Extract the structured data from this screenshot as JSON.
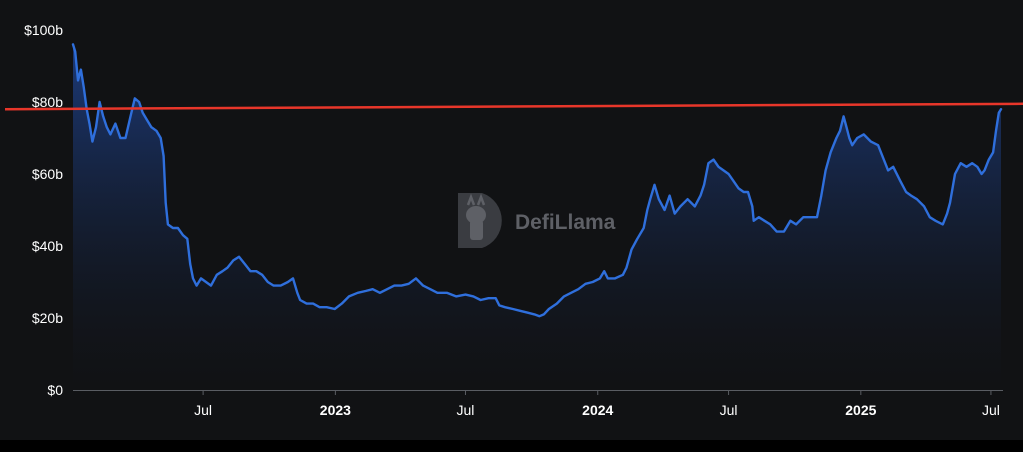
{
  "chart_data": {
    "type": "area",
    "title": "",
    "xlabel": "",
    "ylabel": "",
    "ylim": [
      0,
      100
    ],
    "y_unit": "$b",
    "y_ticks": [
      "$0",
      "$20b",
      "$40b",
      "$60b",
      "$80b",
      "$100b"
    ],
    "y_tick_values": [
      0,
      20,
      40,
      60,
      80,
      100
    ],
    "x_ticks": [
      {
        "label": "Jul",
        "date": "2022-07-01",
        "bold": false
      },
      {
        "label": "2023",
        "date": "2023-01-01",
        "bold": true
      },
      {
        "label": "Jul",
        "date": "2023-07-01",
        "bold": false
      },
      {
        "label": "2024",
        "date": "2024-01-01",
        "bold": true
      },
      {
        "label": "Jul",
        "date": "2024-07-01",
        "bold": false
      },
      {
        "label": "2025",
        "date": "2025-01-01",
        "bold": true
      },
      {
        "label": "Jul",
        "date": "2025-07-01",
        "bold": false
      }
    ],
    "xlim": [
      "2022-01-01",
      "2025-07-15"
    ],
    "grid": false,
    "legend": "none",
    "series": [
      {
        "color": "#2f6fdc",
        "points": [
          [
            "2022-01-01",
            96
          ],
          [
            "2022-01-04",
            94
          ],
          [
            "2022-01-08",
            86
          ],
          [
            "2022-01-12",
            89
          ],
          [
            "2022-01-16",
            84
          ],
          [
            "2022-01-20",
            78
          ],
          [
            "2022-01-24",
            74
          ],
          [
            "2022-01-28",
            69
          ],
          [
            "2022-02-02",
            73
          ],
          [
            "2022-02-07",
            80
          ],
          [
            "2022-02-12",
            76
          ],
          [
            "2022-02-17",
            73
          ],
          [
            "2022-02-22",
            71
          ],
          [
            "2022-03-01",
            74
          ],
          [
            "2022-03-08",
            70
          ],
          [
            "2022-03-15",
            70
          ],
          [
            "2022-03-22",
            76
          ],
          [
            "2022-03-28",
            81
          ],
          [
            "2022-04-03",
            80
          ],
          [
            "2022-04-08",
            77
          ],
          [
            "2022-04-14",
            75
          ],
          [
            "2022-04-20",
            73
          ],
          [
            "2022-04-27",
            72
          ],
          [
            "2022-05-03",
            70
          ],
          [
            "2022-05-07",
            65
          ],
          [
            "2022-05-10",
            52
          ],
          [
            "2022-05-13",
            46
          ],
          [
            "2022-05-20",
            45
          ],
          [
            "2022-05-27",
            45
          ],
          [
            "2022-06-03",
            43
          ],
          [
            "2022-06-09",
            42
          ],
          [
            "2022-06-13",
            35
          ],
          [
            "2022-06-17",
            31
          ],
          [
            "2022-06-22",
            29
          ],
          [
            "2022-06-28",
            31
          ],
          [
            "2022-07-05",
            30
          ],
          [
            "2022-07-12",
            29
          ],
          [
            "2022-07-20",
            32
          ],
          [
            "2022-07-28",
            33
          ],
          [
            "2022-08-04",
            34
          ],
          [
            "2022-08-12",
            36
          ],
          [
            "2022-08-20",
            37
          ],
          [
            "2022-08-28",
            35
          ],
          [
            "2022-09-05",
            33
          ],
          [
            "2022-09-13",
            33
          ],
          [
            "2022-09-21",
            32
          ],
          [
            "2022-09-29",
            30
          ],
          [
            "2022-10-07",
            29
          ],
          [
            "2022-10-17",
            29
          ],
          [
            "2022-10-27",
            30
          ],
          [
            "2022-11-03",
            31
          ],
          [
            "2022-11-09",
            27
          ],
          [
            "2022-11-13",
            25
          ],
          [
            "2022-11-22",
            24
          ],
          [
            "2022-12-01",
            24
          ],
          [
            "2022-12-10",
            23
          ],
          [
            "2022-12-20",
            23
          ],
          [
            "2022-12-31",
            22.5
          ],
          [
            "2023-01-10",
            24
          ],
          [
            "2023-01-20",
            26
          ],
          [
            "2023-02-01",
            27
          ],
          [
            "2023-02-12",
            27.5
          ],
          [
            "2023-02-22",
            28
          ],
          [
            "2023-03-04",
            27
          ],
          [
            "2023-03-14",
            28
          ],
          [
            "2023-03-24",
            29
          ],
          [
            "2023-04-03",
            29
          ],
          [
            "2023-04-13",
            29.5
          ],
          [
            "2023-04-23",
            31
          ],
          [
            "2023-05-03",
            29
          ],
          [
            "2023-05-13",
            28
          ],
          [
            "2023-05-23",
            27
          ],
          [
            "2023-06-05",
            27
          ],
          [
            "2023-06-18",
            26
          ],
          [
            "2023-07-01",
            26.5
          ],
          [
            "2023-07-12",
            26
          ],
          [
            "2023-07-22",
            25
          ],
          [
            "2023-08-02",
            25.5
          ],
          [
            "2023-08-12",
            25.5
          ],
          [
            "2023-08-17",
            23.5
          ],
          [
            "2023-08-25",
            23
          ],
          [
            "2023-09-05",
            22.5
          ],
          [
            "2023-09-15",
            22
          ],
          [
            "2023-09-25",
            21.5
          ],
          [
            "2023-10-05",
            21
          ],
          [
            "2023-10-12",
            20.5
          ],
          [
            "2023-10-18",
            21
          ],
          [
            "2023-10-25",
            22.5
          ],
          [
            "2023-11-05",
            24
          ],
          [
            "2023-11-15",
            26
          ],
          [
            "2023-11-25",
            27
          ],
          [
            "2023-12-05",
            28
          ],
          [
            "2023-12-15",
            29.5
          ],
          [
            "2023-12-25",
            30
          ],
          [
            "2024-01-04",
            31
          ],
          [
            "2024-01-10",
            33
          ],
          [
            "2024-01-15",
            31
          ],
          [
            "2024-01-25",
            31
          ],
          [
            "2024-02-05",
            32
          ],
          [
            "2024-02-10",
            34
          ],
          [
            "2024-02-17",
            39
          ],
          [
            "2024-02-25",
            42
          ],
          [
            "2024-03-05",
            45
          ],
          [
            "2024-03-10",
            50
          ],
          [
            "2024-03-14",
            53
          ],
          [
            "2024-03-20",
            57
          ],
          [
            "2024-03-26",
            53
          ],
          [
            "2024-04-03",
            50
          ],
          [
            "2024-04-10",
            54
          ],
          [
            "2024-04-17",
            49
          ],
          [
            "2024-04-25",
            51
          ],
          [
            "2024-05-05",
            53
          ],
          [
            "2024-05-15",
            51
          ],
          [
            "2024-05-23",
            54
          ],
          [
            "2024-05-28",
            57
          ],
          [
            "2024-06-03",
            63
          ],
          [
            "2024-06-10",
            64
          ],
          [
            "2024-06-17",
            62
          ],
          [
            "2024-06-24",
            61
          ],
          [
            "2024-07-01",
            60
          ],
          [
            "2024-07-08",
            58
          ],
          [
            "2024-07-15",
            56
          ],
          [
            "2024-07-22",
            55
          ],
          [
            "2024-07-28",
            55
          ],
          [
            "2024-08-03",
            51
          ],
          [
            "2024-08-05",
            47
          ],
          [
            "2024-08-12",
            48
          ],
          [
            "2024-08-20",
            47
          ],
          [
            "2024-08-28",
            46
          ],
          [
            "2024-09-06",
            44
          ],
          [
            "2024-09-16",
            44
          ],
          [
            "2024-09-25",
            47
          ],
          [
            "2024-10-03",
            46
          ],
          [
            "2024-10-13",
            48
          ],
          [
            "2024-10-23",
            48
          ],
          [
            "2024-11-01",
            48
          ],
          [
            "2024-11-07",
            54
          ],
          [
            "2024-11-13",
            61
          ],
          [
            "2024-11-20",
            66
          ],
          [
            "2024-11-28",
            70
          ],
          [
            "2024-12-03",
            72
          ],
          [
            "2024-12-08",
            76
          ],
          [
            "2024-12-12",
            73
          ],
          [
            "2024-12-16",
            70
          ],
          [
            "2024-12-20",
            68
          ],
          [
            "2024-12-27",
            70
          ],
          [
            "2025-01-05",
            71
          ],
          [
            "2025-01-15",
            69
          ],
          [
            "2025-01-25",
            68
          ],
          [
            "2025-02-02",
            64
          ],
          [
            "2025-02-08",
            61
          ],
          [
            "2025-02-15",
            62
          ],
          [
            "2025-02-25",
            58
          ],
          [
            "2025-03-05",
            55
          ],
          [
            "2025-03-12",
            54
          ],
          [
            "2025-03-20",
            53
          ],
          [
            "2025-03-30",
            51
          ],
          [
            "2025-04-07",
            48
          ],
          [
            "2025-04-15",
            47
          ],
          [
            "2025-04-25",
            46
          ],
          [
            "2025-05-01",
            49
          ],
          [
            "2025-05-05",
            52
          ],
          [
            "2025-05-12",
            60
          ],
          [
            "2025-05-20",
            63
          ],
          [
            "2025-05-28",
            62
          ],
          [
            "2025-06-05",
            63
          ],
          [
            "2025-06-12",
            62
          ],
          [
            "2025-06-18",
            60
          ],
          [
            "2025-06-22",
            61
          ],
          [
            "2025-06-28",
            64
          ],
          [
            "2025-07-04",
            66
          ],
          [
            "2025-07-08",
            72
          ],
          [
            "2025-07-12",
            77
          ],
          [
            "2025-07-15",
            78
          ]
        ]
      }
    ],
    "reference_lines": [
      {
        "color": "#e8362a",
        "start_value": 78,
        "end_value": 79.5
      }
    ]
  },
  "watermark": {
    "text": "DefiLlama"
  },
  "colors": {
    "line": "#2f6fdc",
    "fill_top": "#1d3f86",
    "fill_bottom": "#111214",
    "reference": "#e8362a",
    "axis": "#5a5d63",
    "text": "#ffffff",
    "panel_bg": "#111214"
  }
}
